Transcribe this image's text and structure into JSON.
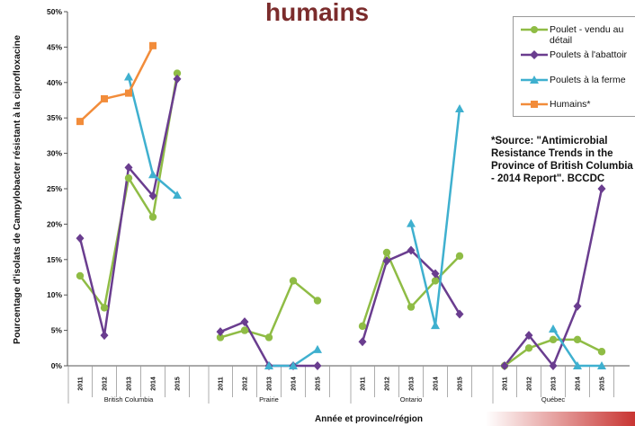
{
  "chart_data": {
    "type": "line",
    "title": "humains",
    "xlabel": "Année et province/région",
    "ylabel": "Pourcentage d'isolats de Campylobacter résistant à la ciprofloxacine",
    "ylim": [
      0,
      50
    ],
    "yticks": [
      "0%",
      "5%",
      "10%",
      "15%",
      "20%",
      "25%",
      "30%",
      "35%",
      "40%",
      "45%",
      "50%"
    ],
    "regions": [
      {
        "name": "British Columbia",
        "years": [
          "2011",
          "2012",
          "2013",
          "2014",
          "2015"
        ]
      },
      {
        "name": "Prairie",
        "years": [
          "2011",
          "2012",
          "2013",
          "2014",
          "2015"
        ]
      },
      {
        "name": "Ontario",
        "years": [
          "2011",
          "2012",
          "2013",
          "2014",
          "2015"
        ]
      },
      {
        "name": "Québec",
        "years": [
          "2011",
          "2012",
          "2013",
          "2014",
          "2015"
        ]
      }
    ],
    "series": [
      {
        "name": "Poulet - vendu au détail",
        "color": "#8fbc45",
        "marker": "circle",
        "values": [
          [
            12.7,
            8.2,
            26.5,
            21.0,
            41.3
          ],
          [
            4.0,
            5.0,
            4.0,
            12.0,
            9.2
          ],
          [
            5.6,
            16.0,
            8.3,
            12.0,
            15.5
          ],
          [
            0,
            2.5,
            3.7,
            3.7,
            2.0
          ]
        ]
      },
      {
        "name": "Poulets à l'abattoir",
        "color": "#6a3d8f",
        "marker": "diamond",
        "values": [
          [
            18.0,
            4.3,
            28.0,
            24.0,
            40.5
          ],
          [
            4.8,
            6.2,
            0,
            0,
            0
          ],
          [
            3.4,
            14.8,
            16.3,
            13.0,
            7.3
          ],
          [
            0,
            4.3,
            0,
            8.4,
            25.0
          ]
        ]
      },
      {
        "name": "Poulets à la ferme",
        "color": "#3fb0cf",
        "marker": "triangle",
        "values": [
          [
            null,
            null,
            40.8,
            27.0,
            24.1
          ],
          [
            null,
            null,
            0,
            0,
            2.3
          ],
          [
            null,
            null,
            20.1,
            5.7,
            36.3
          ],
          [
            null,
            null,
            5.2,
            0,
            0
          ]
        ]
      },
      {
        "name": "Humains*",
        "color": "#f28c3a",
        "marker": "square",
        "values": [
          [
            34.5,
            37.7,
            38.5,
            45.2,
            null
          ],
          [
            null,
            null,
            null,
            null,
            null
          ],
          [
            null,
            null,
            null,
            null,
            null
          ],
          [
            null,
            null,
            null,
            null,
            null
          ]
        ]
      }
    ],
    "legend_position": "top-right",
    "annotation": "*Source: \"Antimicrobial Resistance Trends in the Province of British Columbia - 2014 Report\". BCCDC"
  }
}
